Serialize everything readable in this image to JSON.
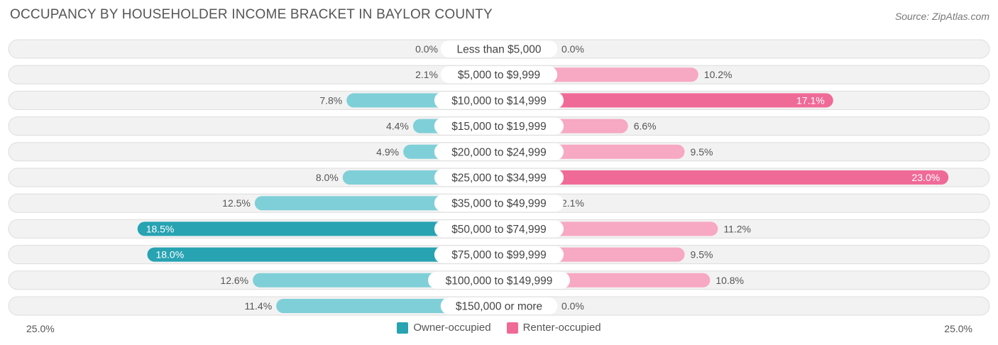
{
  "header": {
    "title": "OCCUPANCY BY HOUSEHOLDER INCOME BRACKET IN BAYLOR COUNTY",
    "source": "Source: ZipAtlas.com"
  },
  "axis": {
    "left_label": "25.0%",
    "right_label": "25.0%"
  },
  "legend": {
    "owner": "Owner-occupied",
    "renter": "Renter-occupied"
  },
  "colors": {
    "owner_light": "#7fcfd8",
    "owner_dark": "#27a3b2",
    "renter_light": "#f7a8c3",
    "renter_dark": "#f06a97",
    "row_bg": "#f2f2f2",
    "row_border": "#dddddd"
  },
  "chart_data": {
    "type": "bar",
    "orientation": "horizontal-diverging",
    "title": "OCCUPANCY BY HOUSEHOLDER INCOME BRACKET IN BAYLOR COUNTY",
    "xlim": [
      -25,
      25
    ],
    "categories": [
      "Less than $5,000",
      "$5,000 to $9,999",
      "$10,000 to $14,999",
      "$15,000 to $19,999",
      "$20,000 to $24,999",
      "$25,000 to $34,999",
      "$35,000 to $49,999",
      "$50,000 to $74,999",
      "$75,000 to $99,999",
      "$100,000 to $149,999",
      "$150,000 or more"
    ],
    "series": [
      {
        "name": "Owner-occupied",
        "values": [
          0.0,
          2.1,
          7.8,
          4.4,
          4.9,
          8.0,
          12.5,
          18.5,
          18.0,
          12.6,
          11.4
        ],
        "labels": [
          "0.0%",
          "2.1%",
          "7.8%",
          "4.4%",
          "4.9%",
          "8.0%",
          "12.5%",
          "18.5%",
          "18.0%",
          "12.6%",
          "11.4%"
        ]
      },
      {
        "name": "Renter-occupied",
        "values": [
          0.0,
          10.2,
          17.1,
          6.6,
          9.5,
          23.0,
          2.1,
          11.2,
          9.5,
          10.8,
          0.0
        ],
        "labels": [
          "0.0%",
          "10.2%",
          "17.1%",
          "6.6%",
          "9.5%",
          "23.0%",
          "2.1%",
          "11.2%",
          "9.5%",
          "10.8%",
          "0.0%"
        ]
      }
    ]
  }
}
